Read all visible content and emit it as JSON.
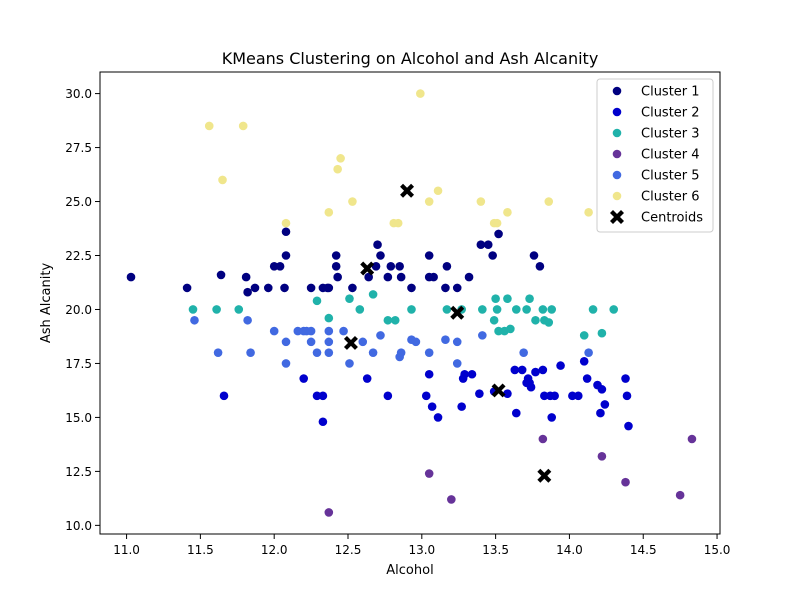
{
  "chart_data": {
    "type": "scatter",
    "title": "KMeans Clustering on Alcohol and Ash Alcanity",
    "xlabel": "Alcohol",
    "ylabel": "Ash Alcanity",
    "xlim": [
      10.82,
      15.02
    ],
    "ylim": [
      9.6,
      31.0
    ],
    "xticks": [
      11.0,
      11.5,
      12.0,
      12.5,
      13.0,
      13.5,
      14.0,
      14.5,
      15.0
    ],
    "yticks": [
      10.0,
      12.5,
      15.0,
      17.5,
      20.0,
      22.5,
      25.0,
      27.5,
      30.0
    ],
    "grid": false,
    "legend_position": "top-right",
    "series": [
      {
        "name": "Cluster 1",
        "color": "#000080",
        "marker": "circle",
        "points": [
          [
            11.03,
            21.5
          ],
          [
            11.41,
            21.0
          ],
          [
            11.64,
            21.6
          ],
          [
            11.81,
            21.5
          ],
          [
            11.82,
            20.8
          ],
          [
            11.87,
            21.0
          ],
          [
            11.96,
            21.0
          ],
          [
            12.0,
            22.0
          ],
          [
            12.04,
            22.0
          ],
          [
            12.07,
            21.0
          ],
          [
            12.08,
            22.5
          ],
          [
            12.08,
            23.6
          ],
          [
            12.25,
            21.0
          ],
          [
            12.33,
            21.0
          ],
          [
            12.36,
            21.0
          ],
          [
            12.37,
            21.0
          ],
          [
            12.42,
            22.0
          ],
          [
            12.42,
            22.5
          ],
          [
            12.43,
            21.5
          ],
          [
            12.53,
            21.0
          ],
          [
            12.64,
            21.5
          ],
          [
            12.69,
            22.0
          ],
          [
            12.7,
            23.0
          ],
          [
            12.72,
            22.5
          ],
          [
            12.77,
            21.5
          ],
          [
            12.79,
            22.0
          ],
          [
            12.85,
            22.0
          ],
          [
            12.86,
            21.5
          ],
          [
            12.93,
            21.0
          ],
          [
            13.05,
            22.5
          ],
          [
            13.05,
            21.5
          ],
          [
            13.08,
            21.5
          ],
          [
            13.16,
            21.0
          ],
          [
            13.17,
            22.0
          ],
          [
            13.24,
            21.0
          ],
          [
            13.32,
            21.5
          ],
          [
            13.4,
            23.0
          ],
          [
            13.45,
            23.0
          ],
          [
            13.48,
            22.5
          ],
          [
            13.52,
            23.5
          ],
          [
            13.76,
            22.5
          ],
          [
            13.8,
            22.0
          ]
        ]
      },
      {
        "name": "Cluster 2",
        "color": "#0000cd",
        "marker": "circle",
        "points": [
          [
            11.66,
            16.0
          ],
          [
            12.2,
            16.8
          ],
          [
            12.29,
            16.0
          ],
          [
            12.33,
            16.0
          ],
          [
            12.33,
            14.8
          ],
          [
            12.63,
            16.8
          ],
          [
            12.77,
            16.0
          ],
          [
            13.03,
            16.0
          ],
          [
            13.05,
            17.0
          ],
          [
            13.07,
            15.5
          ],
          [
            13.11,
            15.0
          ],
          [
            13.27,
            15.5
          ],
          [
            13.28,
            16.8
          ],
          [
            13.29,
            17.0
          ],
          [
            13.34,
            17.0
          ],
          [
            13.39,
            16.1
          ],
          [
            13.49,
            16.2
          ],
          [
            13.58,
            16.1
          ],
          [
            13.63,
            17.2
          ],
          [
            13.64,
            15.2
          ],
          [
            13.68,
            17.2
          ],
          [
            13.71,
            16.6
          ],
          [
            13.72,
            16.8
          ],
          [
            13.73,
            16.6
          ],
          [
            13.74,
            16.4
          ],
          [
            13.77,
            17.1
          ],
          [
            13.82,
            17.2
          ],
          [
            13.83,
            16.0
          ],
          [
            13.87,
            16.0
          ],
          [
            13.88,
            15.0
          ],
          [
            13.9,
            16.0
          ],
          [
            13.94,
            17.4
          ],
          [
            14.02,
            16.0
          ],
          [
            14.06,
            16.0
          ],
          [
            14.1,
            17.6
          ],
          [
            14.12,
            16.8
          ],
          [
            14.19,
            16.5
          ],
          [
            14.21,
            15.2
          ],
          [
            14.22,
            16.3
          ],
          [
            14.24,
            15.6
          ],
          [
            14.38,
            16.8
          ],
          [
            14.39,
            16.0
          ],
          [
            14.4,
            14.6
          ]
        ]
      },
      {
        "name": "Cluster 3",
        "color": "#20b2aa",
        "marker": "circle",
        "points": [
          [
            11.45,
            20.0
          ],
          [
            11.61,
            20.0
          ],
          [
            11.76,
            20.0
          ],
          [
            12.29,
            20.4
          ],
          [
            12.37,
            19.6
          ],
          [
            12.51,
            20.5
          ],
          [
            12.58,
            20.0
          ],
          [
            12.67,
            20.7
          ],
          [
            12.77,
            19.5
          ],
          [
            12.82,
            19.5
          ],
          [
            12.93,
            20.0
          ],
          [
            13.17,
            20.0
          ],
          [
            13.27,
            20.0
          ],
          [
            13.41,
            20.0
          ],
          [
            13.49,
            19.5
          ],
          [
            13.5,
            20.5
          ],
          [
            13.51,
            20.0
          ],
          [
            13.52,
            19.0
          ],
          [
            13.56,
            19.0
          ],
          [
            13.58,
            20.5
          ],
          [
            13.6,
            19.1
          ],
          [
            13.64,
            20.0
          ],
          [
            13.71,
            20.0
          ],
          [
            13.73,
            20.5
          ],
          [
            13.77,
            19.5
          ],
          [
            13.82,
            20.0
          ],
          [
            13.83,
            19.5
          ],
          [
            13.86,
            19.4
          ],
          [
            13.88,
            20.0
          ],
          [
            14.1,
            18.8
          ],
          [
            14.16,
            20.0
          ],
          [
            14.22,
            18.9
          ],
          [
            14.3,
            20.0
          ]
        ]
      },
      {
        "name": "Cluster 4",
        "color": "#663399",
        "marker": "circle",
        "points": [
          [
            12.37,
            10.6
          ],
          [
            13.05,
            12.4
          ],
          [
            13.2,
            11.2
          ],
          [
            13.82,
            14.0
          ],
          [
            14.22,
            13.2
          ],
          [
            14.38,
            12.0
          ],
          [
            14.75,
            11.4
          ],
          [
            14.83,
            14.0
          ]
        ]
      },
      {
        "name": "Cluster 5",
        "color": "#4169e1",
        "marker": "circle",
        "points": [
          [
            11.46,
            19.5
          ],
          [
            11.62,
            18.0
          ],
          [
            11.82,
            19.5
          ],
          [
            11.84,
            18.0
          ],
          [
            12.0,
            19.0
          ],
          [
            12.08,
            18.5
          ],
          [
            12.08,
            17.5
          ],
          [
            12.16,
            19.0
          ],
          [
            12.2,
            19.0
          ],
          [
            12.22,
            19.0
          ],
          [
            12.25,
            18.5
          ],
          [
            12.25,
            19.0
          ],
          [
            12.29,
            18.0
          ],
          [
            12.37,
            19.0
          ],
          [
            12.37,
            18.0
          ],
          [
            12.37,
            18.5
          ],
          [
            12.47,
            19.0
          ],
          [
            12.51,
            17.5
          ],
          [
            12.6,
            18.5
          ],
          [
            12.67,
            18.0
          ],
          [
            12.72,
            18.8
          ],
          [
            12.85,
            17.8
          ],
          [
            12.86,
            18.0
          ],
          [
            12.93,
            18.6
          ],
          [
            12.96,
            18.5
          ],
          [
            13.05,
            18.0
          ],
          [
            13.16,
            18.6
          ],
          [
            13.24,
            18.5
          ],
          [
            13.24,
            17.5
          ],
          [
            13.41,
            18.8
          ],
          [
            13.69,
            18.0
          ],
          [
            14.13,
            18.0
          ]
        ]
      },
      {
        "name": "Cluster 6",
        "color": "#f0e68c",
        "marker": "circle",
        "points": [
          [
            11.56,
            28.5
          ],
          [
            11.65,
            26.0
          ],
          [
            11.79,
            28.5
          ],
          [
            12.08,
            24.0
          ],
          [
            12.37,
            24.5
          ],
          [
            12.43,
            26.5
          ],
          [
            12.45,
            27.0
          ],
          [
            12.53,
            25.0
          ],
          [
            12.81,
            24.0
          ],
          [
            12.84,
            24.0
          ],
          [
            12.99,
            30.0
          ],
          [
            13.05,
            25.0
          ],
          [
            13.11,
            25.5
          ],
          [
            13.4,
            25.0
          ],
          [
            13.49,
            24.0
          ],
          [
            13.51,
            24.0
          ],
          [
            13.58,
            24.5
          ],
          [
            13.86,
            25.0
          ],
          [
            14.13,
            24.5
          ]
        ]
      },
      {
        "name": "Centroids",
        "color": "#000000",
        "marker": "x",
        "points": [
          [
            12.9,
            25.5
          ],
          [
            12.63,
            21.9
          ],
          [
            13.24,
            19.85
          ],
          [
            12.52,
            18.45
          ],
          [
            13.52,
            16.25
          ],
          [
            13.83,
            12.3
          ]
        ]
      }
    ]
  }
}
